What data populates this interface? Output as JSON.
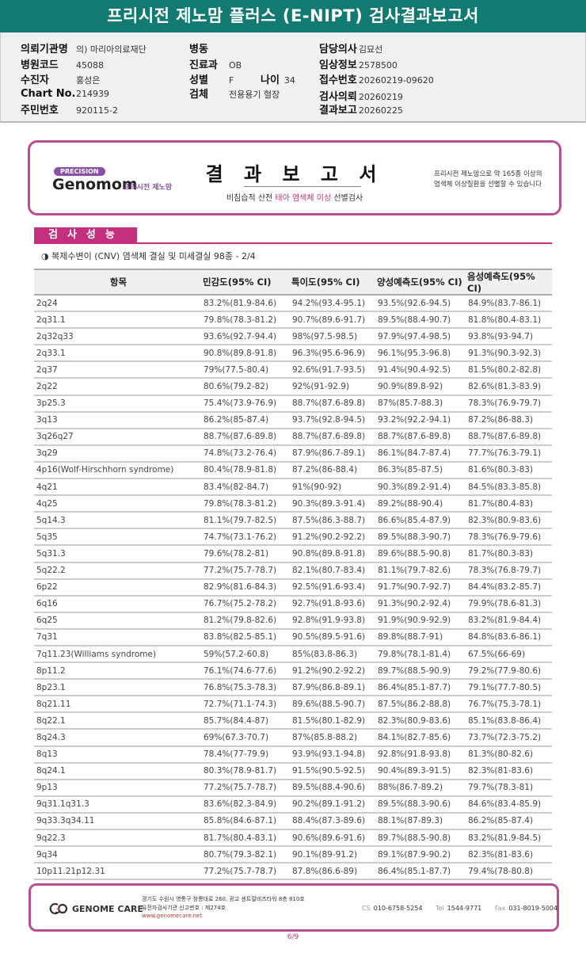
{
  "title": "프리시전 제노맘 플러스 (E-NIPT) 검사결과보고서",
  "patient_info": {
    "institution": {
      "label": "의뢰기관명",
      "value": "의) 마리아의료재단"
    },
    "hospital_code": {
      "label": "병원코드",
      "value": "45088"
    },
    "examinee": {
      "label": "수진자",
      "value": "홍성은"
    },
    "chart_no": {
      "label": "Chart No.",
      "value": "214939"
    },
    "resident_no": {
      "label": "주민번호",
      "value": "920115-2"
    },
    "ward": {
      "label": "병동",
      "value": ""
    },
    "department": {
      "label": "진료과",
      "value": "OB"
    },
    "sex": {
      "label": "성별",
      "value": "F"
    },
    "age": {
      "label": "나이",
      "value": "34"
    },
    "specimen": {
      "label": "검체",
      "value": "전용용기 혈장"
    },
    "doctor": {
      "label": "담당의사",
      "value": "김묘선"
    },
    "clinical_info": {
      "label": "임상정보",
      "value": "2578500"
    },
    "receipt_no": {
      "label": "접수번호",
      "value": "20260219-09620"
    },
    "request_date": {
      "label": "검사의뢰",
      "value": "20260219"
    },
    "report_date": {
      "label": "결과보고",
      "value": "20260225"
    }
  },
  "banner": {
    "precision": "PRECISION",
    "brand": "Genomom",
    "brand_sub": "프리시전 제노맘",
    "report_title": "결 과 보 고 서",
    "subtitle_a": "비침습적 산전 ",
    "subtitle_b": "태아 염색체 이상",
    "subtitle_c": " 선별검사",
    "right_line1": "프리시전 제노맘으로 약 165종 이상의",
    "right_line2": "염색체 이상질환을 선별할 수 있습니다"
  },
  "section": {
    "tab": "검사성능",
    "subtitle": "◑ 복제수변이 (CNV) 염색체 결실 및 미세결실 98종 - 2/4"
  },
  "table": {
    "headers": [
      "항목",
      "민감도(95% CI)",
      "특이도(95% CI)",
      "양성예측도(95% CI)",
      "음성예측도(95% CI)"
    ],
    "rows": [
      [
        "2q24",
        "83.2%(81.9-84.6)",
        "94.2%(93.4-95.1)",
        "93.5%(92.6-94.5)",
        "84.9%(83.7-86.1)"
      ],
      [
        "2q31.1",
        "79.8%(78.3-81.2)",
        "90.7%(89.6-91.7)",
        "89.5%(88.4-90.7)",
        "81.8%(80.4-83.1)"
      ],
      [
        "2q32q33",
        "93.6%(92.7-94.4)",
        "98%(97.5-98.5)",
        "97.9%(97.4-98.5)",
        "93.8%(93-94.7)"
      ],
      [
        "2q33.1",
        "90.8%(89.8-91.8)",
        "96.3%(95.6-96.9)",
        "96.1%(95.3-96.8)",
        "91.3%(90.3-92.3)"
      ],
      [
        "2q37",
        "79%(77.5-80.4)",
        "92.6%(91.7-93.5)",
        "91.4%(90.4-92.5)",
        "81.5%(80.2-82.8)"
      ],
      [
        "2q22",
        "80.6%(79.2-82)",
        "92%(91-92.9)",
        "90.9%(89.8-92)",
        "82.6%(81.3-83.9)"
      ],
      [
        "3p25.3",
        "75.4%(73.9-76.9)",
        "88.7%(87.6-89.8)",
        "87%(85.7-88.3)",
        "78.3%(76.9-79.7)"
      ],
      [
        "3q13",
        "86.2%(85-87.4)",
        "93.7%(92.8-94.5)",
        "93.2%(92.2-94.1)",
        "87.2%(86-88.3)"
      ],
      [
        "3q26q27",
        "88.7%(87.6-89.8)",
        "88.7%(87.6-89.8)",
        "88.7%(87.6-89.8)",
        "88.7%(87.6-89.8)"
      ],
      [
        "3q29",
        "74.8%(73.2-76.4)",
        "87.9%(86.7-89.1)",
        "86.1%(84.7-87.4)",
        "77.7%(76.3-79.1)"
      ],
      [
        "4p16(Wolf-Hirschhorn syndrome)",
        "80.4%(78.9-81.8)",
        "87.2%(86-88.4)",
        "86.3%(85-87.5)",
        "81.6%(80.3-83)"
      ],
      [
        "4q21",
        "83.4%(82-84.7)",
        "91%(90-92)",
        "90.3%(89.2-91.4)",
        "84.5%(83.3-85.8)"
      ],
      [
        "4q25",
        "79.8%(78.3-81.2)",
        "90.3%(89.3-91.4)",
        "89.2%(88-90.4)",
        "81.7%(80.4-83)"
      ],
      [
        "5q14.3",
        "81.1%(79.7-82.5)",
        "87.5%(86.3-88.7)",
        "86.6%(85.4-87.9)",
        "82.3%(80.9-83.6)"
      ],
      [
        "5q35",
        "74.7%(73.1-76.2)",
        "91.2%(90.2-92.2)",
        "89.5%(88.3-90.7)",
        "78.3%(76.9-79.6)"
      ],
      [
        "5q31.3",
        "79.6%(78.2-81)",
        "90.8%(89.8-91.8)",
        "89.6%(88.5-90.8)",
        "81.7%(80.3-83)"
      ],
      [
        "5q22.2",
        "77.2%(75.7-78.7)",
        "82.1%(80.7-83.4)",
        "81.1%(79.7-82.6)",
        "78.3%(76.8-79.7)"
      ],
      [
        "6p22",
        "82.9%(81.6-84.3)",
        "92.5%(91.6-93.4)",
        "91.7%(90.7-92.7)",
        "84.4%(83.2-85.7)"
      ],
      [
        "6q16",
        "76.7%(75.2-78.2)",
        "92.7%(91.8-93.6)",
        "91.3%(90.2-92.4)",
        "79.9%(78.6-81.3)"
      ],
      [
        "6q25",
        "81.2%(79.8-82.6)",
        "92.8%(91.9-93.8)",
        "91.9%(90.9-92.9)",
        "83.2%(81.9-84.4)"
      ],
      [
        "7q31",
        "83.8%(82.5-85.1)",
        "90.5%(89.5-91.6)",
        "89.8%(88.7-91)",
        "84.8%(83.6-86.1)"
      ],
      [
        "7q11.23(Williams syndrome)",
        "59%(57.2-60.8)",
        "85%(83.8-86.3)",
        "79.8%(78.1-81.4)",
        "67.5%(66-69)"
      ],
      [
        "8p11.2",
        "76.1%(74.6-77.6)",
        "91.2%(90.2-92.2)",
        "89.7%(88.5-90.9)",
        "79.2%(77.9-80.6)"
      ],
      [
        "8p23.1",
        "76.8%(75.3-78.3)",
        "87.9%(86.8-89.1)",
        "86.4%(85.1-87.7)",
        "79.1%(77.7-80.5)"
      ],
      [
        "8q21.11",
        "72.7%(71.1-74.3)",
        "89.6%(88.5-90.7)",
        "87.5%(86.2-88.8)",
        "76.7%(75.3-78.1)"
      ],
      [
        "8q22.1",
        "85.7%(84.4-87)",
        "81.5%(80.1-82.9)",
        "82.3%(80.9-83.6)",
        "85.1%(83.8-86.4)"
      ],
      [
        "8q24.3",
        "69%(67.3-70.7)",
        "87%(85.8-88.2)",
        "84.1%(82.7-85.6)",
        "73.7%(72.3-75.2)"
      ],
      [
        "8q13",
        "78.4%(77-79.9)",
        "93.9%(93.1-94.8)",
        "92.8%(91.8-93.8)",
        "81.3%(80-82.6)"
      ],
      [
        "8q24.1",
        "80.3%(78.9-81.7)",
        "91.5%(90.5-92.5)",
        "90.4%(89.3-91.5)",
        "82.3%(81-83.6)"
      ],
      [
        "9p13",
        "77.2%(75.7-78.7)",
        "89.5%(88.4-90.6)",
        "88%(86.7-89.2)",
        "79.7%(78.3-81)"
      ],
      [
        "9q31.1q31.3",
        "83.6%(82.3-84.9)",
        "90.2%(89.1-91.2)",
        "89.5%(88.3-90.6)",
        "84.6%(83.4-85.9)"
      ],
      [
        "9q33.3q34.11",
        "85.8%(84.6-87.1)",
        "88.4%(87.3-89.6)",
        "88.1%(87-89.3)",
        "86.2%(85-87.4)"
      ],
      [
        "9q22.3",
        "81.7%(80.4-83.1)",
        "90.6%(89.6-91.6)",
        "89.7%(88.5-90.8)",
        "83.2%(81.9-84.5)"
      ],
      [
        "9q34",
        "80.7%(79.3-82.1)",
        "90.1%(89-91.2)",
        "89.1%(87.9-90.2)",
        "82.3%(81-83.6)"
      ],
      [
        "10p11.21p12.31",
        "77.2%(75.7-78.7)",
        "87.8%(86.6-89)",
        "86.4%(85.1-87.7)",
        "79.4%(78-80.8)"
      ]
    ]
  },
  "footer": {
    "logo": "GENOME CARE",
    "address": "경기도 수원시 영통구 창룡대로 260, 광교 센트럴비즈타워 8층 810호",
    "registration": "유전자검사기관 신고번호 : 제274호",
    "website": "www.genomecare.net",
    "cs_label": "CS",
    "cs": "010-6758-5254",
    "tel_label": "Tel",
    "tel": "1544-9771",
    "fax_label": "Fax",
    "fax": "031-8019-5004"
  },
  "page": "6/9",
  "colors": {
    "title_bar": "#137a72",
    "accent": "#c2307e",
    "banner_border": "#b84e93"
  }
}
